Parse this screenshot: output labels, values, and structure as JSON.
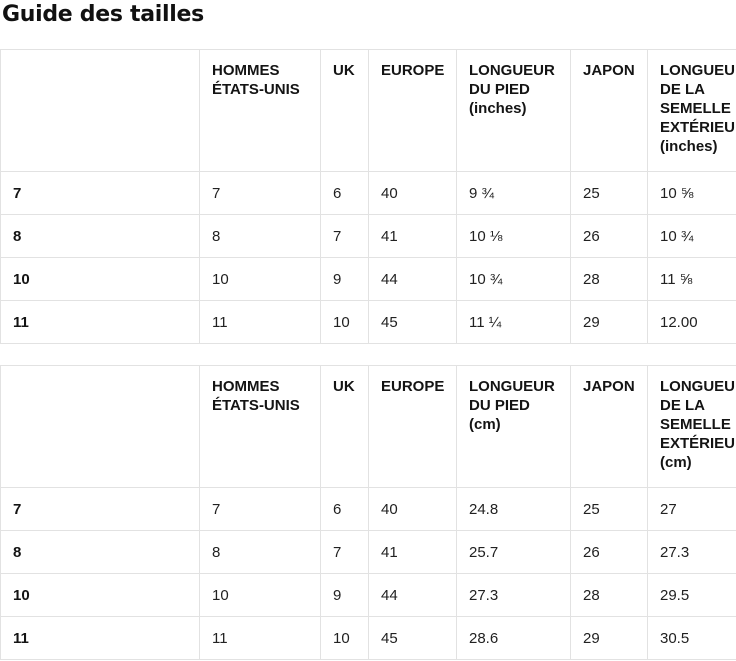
{
  "page": {
    "title": "Guide des tailles"
  },
  "colors": {
    "background": "#ffffff",
    "border": "#e2e2e2",
    "text": "#212121",
    "heading_text": "#111111"
  },
  "tables": [
    {
      "name": "sizes-inches",
      "headers": [
        "",
        "HOMMES ÉTATS-UNIS",
        "UK",
        "EUROPE",
        "LONGUEUR DU PIED (inches)",
        "JAPON",
        "LONGUEUR DE LA SEMELLE EXTÉRIEURE (inches)"
      ],
      "rows": [
        [
          "7",
          "7",
          "6",
          "40",
          "9 ¾",
          "25",
          "10 ⅝"
        ],
        [
          "8",
          "8",
          "7",
          "41",
          "10 ⅛",
          "26",
          "10 ¾"
        ],
        [
          "10",
          "10",
          "9",
          "44",
          "10 ¾",
          "28",
          "11 ⅝"
        ],
        [
          "11",
          "11",
          "10",
          "45",
          "11 ¼",
          "29",
          "12.00"
        ]
      ]
    },
    {
      "name": "sizes-cm",
      "headers": [
        "",
        "HOMMES ÉTATS-UNIS",
        "UK",
        "EUROPE",
        "LONGUEUR DU PIED (cm)",
        "JAPON",
        "LONGUEUR DE LA SEMELLE EXTÉRIEURE (cm)"
      ],
      "rows": [
        [
          "7",
          "7",
          "6",
          "40",
          "24.8",
          "25",
          "27"
        ],
        [
          "8",
          "8",
          "7",
          "41",
          "25.7",
          "26",
          "27.3"
        ],
        [
          "10",
          "10",
          "9",
          "44",
          "27.3",
          "28",
          "29.5"
        ],
        [
          "11",
          "11",
          "10",
          "45",
          "28.6",
          "29",
          "30.5"
        ]
      ]
    }
  ]
}
